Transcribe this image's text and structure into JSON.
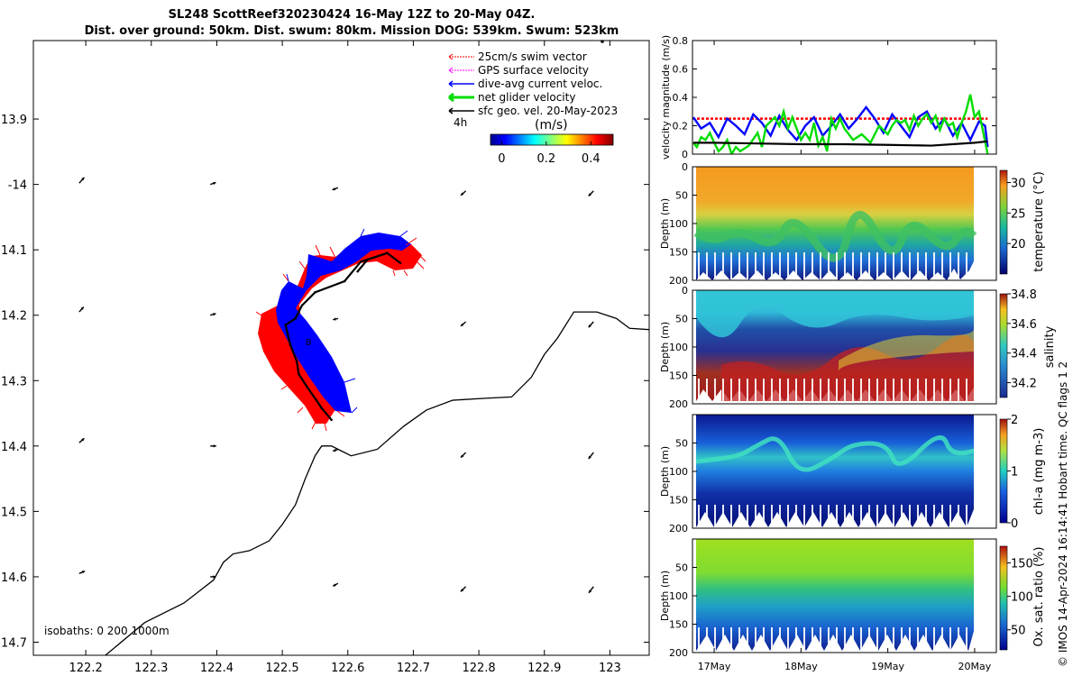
{
  "title": {
    "line1": "SL248 ScottReef320230424 16-May 12Z to 20-May 04Z.",
    "line2": "Dist. over ground: 50km. Dist. swum: 80km. Mission DOG: 539km. Swum: 523km"
  },
  "credit": "© IMOS 14-Apr-2024 16:14:41 Hobart time. QC flags 1  2",
  "colors": {
    "swim": "#ff0000",
    "gps": "#ff00ff",
    "diveavg": "#0000ff",
    "net": "#00dd00",
    "sfc": "#000000"
  },
  "chart_data": [
    {
      "type": "scatter",
      "name": "map",
      "xlim": [
        122.12,
        123.06
      ],
      "ylim": [
        -14.72,
        -13.78
      ],
      "xticks": [
        122.2,
        122.3,
        122.4,
        122.5,
        122.6,
        122.7,
        122.8,
        122.9,
        123
      ],
      "xtick_labels": [
        "122.2",
        "122.3",
        "122.4",
        "122.5",
        "122.6",
        "122.7",
        "122.8",
        "122.9",
        "123"
      ],
      "yticks": [
        -13.9,
        -14,
        -14.1,
        -14.2,
        -14.3,
        -14.4,
        -14.5,
        -14.6,
        -14.7
      ],
      "ytick_labels": [
        "13.9",
        "-14",
        "14.1",
        "14.2",
        "14.3",
        "14.4",
        "14.5",
        "14.6",
        "14.7"
      ],
      "legend": [
        "25cm/s swim vector",
        "GPS surface velocity",
        "dive-avg current veloc.",
        "net glider velocity",
        "sfc geo. vel. 20-May-2023"
      ],
      "legend_time": "4h",
      "colorbar": {
        "label": "(m/s)",
        "ticks": [
          0,
          0.2,
          0.4
        ],
        "tick_labels": [
          "0",
          "0.2",
          "0.4"
        ],
        "range": [
          -0.05,
          0.5
        ]
      },
      "isobaths_label": "isobaths: 0   200  1000m",
      "track": [
        [
          122.615,
          -14.133
        ],
        [
          122.63,
          -14.115
        ],
        [
          122.66,
          -14.105
        ],
        [
          122.68,
          -14.12
        ],
        [
          122.66,
          -14.105
        ],
        [
          122.62,
          -14.118
        ],
        [
          122.595,
          -14.148
        ],
        [
          122.55,
          -14.165
        ],
        [
          122.53,
          -14.185
        ],
        [
          122.52,
          -14.205
        ],
        [
          122.505,
          -14.215
        ],
        [
          122.512,
          -14.245
        ],
        [
          122.522,
          -14.27
        ],
        [
          122.525,
          -14.29
        ],
        [
          122.538,
          -14.31
        ],
        [
          122.552,
          -14.33
        ],
        [
          122.56,
          -14.342
        ],
        [
          122.575,
          -14.36
        ]
      ],
      "coastline": [
        [
          122.23,
          -14.72
        ],
        [
          122.29,
          -14.67
        ],
        [
          122.35,
          -14.64
        ],
        [
          122.395,
          -14.605
        ],
        [
          122.41,
          -14.578
        ],
        [
          122.425,
          -14.565
        ],
        [
          122.45,
          -14.56
        ],
        [
          122.48,
          -14.545
        ],
        [
          122.5,
          -14.52
        ],
        [
          122.52,
          -14.49
        ],
        [
          122.535,
          -14.45
        ],
        [
          122.55,
          -14.415
        ],
        [
          122.56,
          -14.4
        ],
        [
          122.575,
          -14.4
        ],
        [
          122.605,
          -14.415
        ],
        [
          122.645,
          -14.405
        ],
        [
          122.685,
          -14.37
        ],
        [
          122.72,
          -14.345
        ],
        [
          122.76,
          -14.33
        ],
        [
          122.81,
          -14.327
        ],
        [
          122.85,
          -14.325
        ],
        [
          122.88,
          -14.295
        ],
        [
          122.9,
          -14.26
        ],
        [
          122.92,
          -14.235
        ],
        [
          122.945,
          -14.195
        ],
        [
          122.98,
          -14.195
        ],
        [
          123.01,
          -14.205
        ],
        [
          123.03,
          -14.22
        ],
        [
          123.06,
          -14.222
        ]
      ],
      "sfc_vectors": [
        [
          122.19,
          -13.998,
          0.8,
          0.9
        ],
        [
          122.39,
          -14.0,
          0.9,
          0.3
        ],
        [
          122.585,
          -14.005,
          -0.9,
          -0.35
        ],
        [
          122.78,
          -14.01,
          -0.8,
          -0.7
        ],
        [
          122.975,
          -14.01,
          -0.8,
          -0.8
        ],
        [
          122.19,
          -14.195,
          0.7,
          0.8
        ],
        [
          122.39,
          -14.2,
          0.9,
          0.25
        ],
        [
          122.585,
          -14.205,
          -0.8,
          -0.2
        ],
        [
          122.78,
          -14.21,
          -0.8,
          -0.7
        ],
        [
          122.975,
          -14.21,
          -0.8,
          -0.9
        ],
        [
          122.19,
          -14.395,
          0.8,
          0.7
        ],
        [
          122.39,
          -14.4,
          0.95,
          0.0
        ],
        [
          122.585,
          -14.405,
          -0.8,
          -0.3
        ],
        [
          122.78,
          -14.41,
          -0.8,
          -0.8
        ],
        [
          122.975,
          -14.41,
          -0.8,
          -1.0
        ],
        [
          122.19,
          -14.595,
          0.9,
          0.4
        ],
        [
          122.39,
          -14.6,
          0.9,
          0.0
        ],
        [
          122.585,
          -14.61,
          -0.8,
          -0.45
        ],
        [
          122.78,
          -14.615,
          -0.8,
          -0.8
        ],
        [
          122.975,
          -14.615,
          -0.75,
          -1.0
        ]
      ]
    },
    {
      "type": "line",
      "name": "velocity",
      "xlim": [
        16.75,
        20.25
      ],
      "ylim": [
        0,
        0.8
      ],
      "yticks": [
        0,
        0.2,
        0.4,
        0.6,
        0.8
      ],
      "ytick_labels": [
        "0",
        "0.2",
        "0.4",
        "0.6",
        "0.8"
      ],
      "ylabel": "velocity magnitude (m/s)",
      "series": [
        {
          "name": "swim vector",
          "color": "#ff0000",
          "x": [
            16.75,
            20.15
          ],
          "values": [
            0.25,
            0.25
          ]
        },
        {
          "name": "dive-avg current",
          "color": "#0000ff",
          "x": [
            16.76,
            16.85,
            16.95,
            17.05,
            17.15,
            17.25,
            17.35,
            17.45,
            17.55,
            17.65,
            17.75,
            17.85,
            17.95,
            18.05,
            18.15,
            18.25,
            18.35,
            18.45,
            18.55,
            18.65,
            18.75,
            18.85,
            18.95,
            19.05,
            19.15,
            19.25,
            19.35,
            19.45,
            19.55,
            19.65,
            19.75,
            19.85,
            19.95,
            20.05,
            20.12,
            20.15
          ],
          "values": [
            0.26,
            0.18,
            0.22,
            0.12,
            0.25,
            0.2,
            0.14,
            0.28,
            0.22,
            0.13,
            0.27,
            0.17,
            0.1,
            0.2,
            0.26,
            0.13,
            0.2,
            0.28,
            0.18,
            0.25,
            0.33,
            0.25,
            0.15,
            0.28,
            0.2,
            0.12,
            0.26,
            0.3,
            0.18,
            0.25,
            0.13,
            0.22,
            0.1,
            0.23,
            0.2,
            0.05
          ]
        },
        {
          "name": "net glider",
          "color": "#00dd00",
          "x": [
            16.76,
            16.8,
            16.85,
            16.9,
            16.95,
            17.0,
            17.05,
            17.1,
            17.15,
            17.2,
            17.25,
            17.3,
            17.4,
            17.5,
            17.55,
            17.6,
            17.7,
            17.75,
            17.8,
            17.85,
            17.9,
            17.95,
            18.0,
            18.05,
            18.1,
            18.15,
            18.2,
            18.25,
            18.3,
            18.35,
            18.4,
            18.45,
            18.5,
            18.6,
            18.7,
            18.8,
            18.9,
            19.0,
            19.05,
            19.1,
            19.15,
            19.2,
            19.25,
            19.3,
            19.35,
            19.4,
            19.45,
            19.5,
            19.55,
            19.6,
            19.65,
            19.7,
            19.75,
            19.8,
            19.85,
            19.9,
            19.95,
            20.0,
            20.05,
            20.1,
            20.15
          ],
          "values": [
            0.08,
            0.05,
            0.12,
            0.1,
            0.15,
            0.08,
            0.02,
            0.05,
            0.1,
            0.0,
            0.05,
            0.02,
            0.06,
            0.15,
            0.05,
            0.2,
            0.26,
            0.2,
            0.3,
            0.18,
            0.26,
            0.18,
            0.1,
            0.15,
            0.1,
            0.22,
            0.06,
            0.12,
            0.02,
            0.25,
            0.18,
            0.25,
            0.18,
            0.1,
            0.14,
            0.08,
            0.2,
            0.14,
            0.2,
            0.24,
            0.22,
            0.24,
            0.17,
            0.27,
            0.2,
            0.25,
            0.28,
            0.22,
            0.27,
            0.17,
            0.25,
            0.2,
            0.22,
            0.12,
            0.22,
            0.3,
            0.42,
            0.26,
            0.3,
            0.15,
            0.0
          ]
        },
        {
          "name": "sfc geo. vel.",
          "color": "#000000",
          "x": [
            16.76,
            17.0,
            17.5,
            18.0,
            18.5,
            19.0,
            19.5,
            20.0,
            20.15
          ],
          "values": [
            0.08,
            0.08,
            0.075,
            0.07,
            0.07,
            0.065,
            0.06,
            0.08,
            0.09
          ]
        }
      ]
    },
    {
      "type": "heatmap",
      "name": "temperature",
      "ylabel": "Depth (m)",
      "yticks": [
        0,
        50,
        100,
        150,
        200
      ],
      "ytick_labels": [
        "0",
        "50",
        "100",
        "150",
        "200"
      ],
      "ylim": [
        200,
        0
      ],
      "colorbar": {
        "label": "temperature (°C)",
        "ticks": [
          20,
          25,
          30
        ],
        "tick_labels": [
          "20",
          "25",
          "30"
        ],
        "range": [
          15,
          32
        ]
      }
    },
    {
      "type": "heatmap",
      "name": "salinity",
      "ylabel": "Depth (m)",
      "yticks": [
        0,
        50,
        100,
        150,
        200
      ],
      "ytick_labels": [
        "0",
        "50",
        "100",
        "150",
        "200"
      ],
      "ylim": [
        200,
        0
      ],
      "colorbar": {
        "label": "salinity",
        "ticks": [
          34.2,
          34.4,
          34.6,
          34.8
        ],
        "tick_labels": [
          "34.2",
          "34.4",
          "34.6",
          "34.8"
        ],
        "range": [
          34.1,
          34.8
        ]
      }
    },
    {
      "type": "heatmap",
      "name": "chla",
      "ylabel": "Depth (m)",
      "yticks": [
        50,
        100,
        150,
        200
      ],
      "ytick_labels": [
        "50",
        "100",
        "150",
        "200"
      ],
      "ylim": [
        200,
        0
      ],
      "colorbar": {
        "label": "chl-a (mg m-3)",
        "ticks": [
          0,
          1,
          2
        ],
        "tick_labels": [
          "0",
          "1",
          "2"
        ],
        "range": [
          0,
          2
        ]
      }
    },
    {
      "type": "heatmap",
      "name": "oxygen",
      "ylabel": "Depth (m)",
      "yticks": [
        50,
        100,
        150,
        200
      ],
      "ytick_labels": [
        "50",
        "100",
        "150",
        "200"
      ],
      "ylim": [
        200,
        0
      ],
      "xticks": [
        17,
        18,
        19,
        20
      ],
      "xtick_labels": [
        "17May",
        "18May",
        "19May",
        "20May"
      ],
      "colorbar": {
        "label": "Ox. sat. ratio (%)",
        "ticks": [
          50,
          100,
          150
        ],
        "tick_labels": [
          "50",
          "100",
          "150"
        ],
        "range": [
          20,
          175
        ]
      }
    }
  ]
}
